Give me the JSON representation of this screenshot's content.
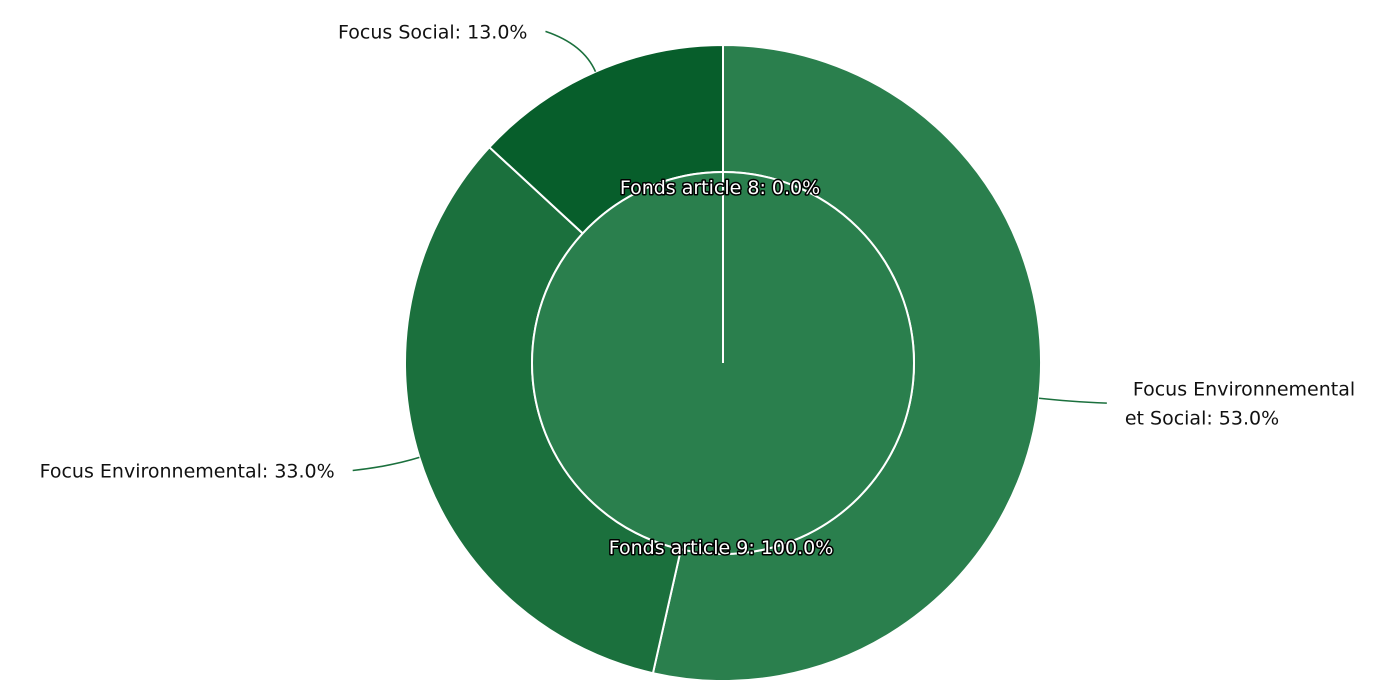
{
  "chart_data": {
    "type": "pie",
    "subtype": "nested-donut",
    "title": "",
    "outer_ring": {
      "slices": [
        {
          "label": "Focus Environnemental et Social",
          "label_lines": [
            "Focus Environnemental",
            "et Social: 53.0%"
          ],
          "value": 53.0,
          "color": "#2a7f4d"
        },
        {
          "label": "Focus Environnemental",
          "label_lines": [
            "Focus Environnemental: 33.0%"
          ],
          "value": 33.0,
          "color": "#1b703d"
        },
        {
          "label": "Focus Social",
          "label_lines": [
            "Focus Social: 13.0%"
          ],
          "value": 13.0,
          "color": "#075e2b"
        }
      ]
    },
    "inner_pie": {
      "slices": [
        {
          "label": "Fonds article 9",
          "display": "Fonds article 9: 100.0%",
          "value": 100.0,
          "color": "#2a7f4d"
        },
        {
          "label": "Fonds article 8",
          "display": "Fonds article 8: 0.0%",
          "value": 0.0,
          "color": "#2a7f4d"
        }
      ]
    },
    "separator_color": "#ffffff",
    "leader_color": "#1b703d"
  }
}
